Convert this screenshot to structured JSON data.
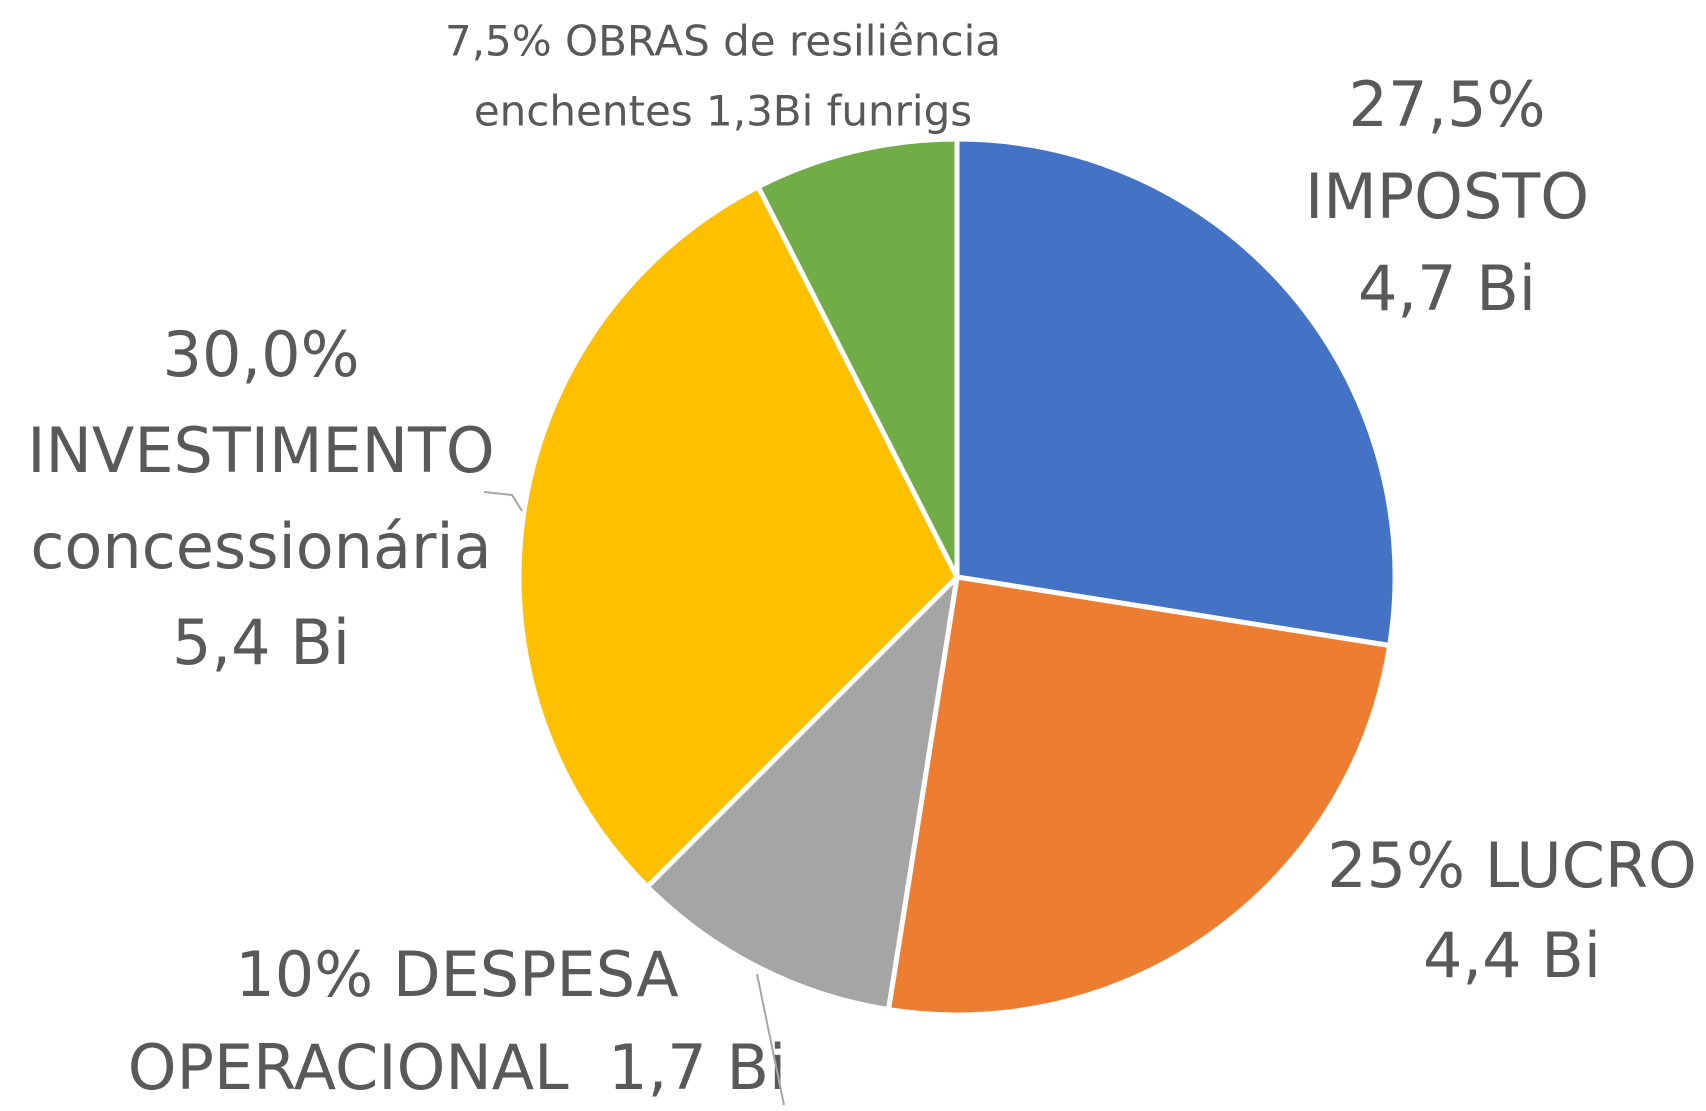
{
  "chart_data": {
    "type": "pie",
    "values": [
      27.5,
      25,
      10,
      30,
      7.5
    ],
    "value_labels": [
      [
        "27,5%",
        "IMPOSTO",
        "4,7 Bi"
      ],
      [
        "25% LUCRO",
        "4,4 Bi"
      ],
      [
        "10% DESPESA",
        "OPERACIONAL  1,7 Bi"
      ],
      [
        "30,0%",
        "INVESTIMENTO",
        "concessionária",
        "5,4 Bi"
      ],
      [
        "7,5% OBRAS de resiliência",
        "enchentes 1,3Bi funrigs"
      ]
    ],
    "colors": [
      "#4472c4",
      "#ed7d31",
      "#a5a5a5",
      "#ffc000",
      "#70ad47"
    ]
  }
}
